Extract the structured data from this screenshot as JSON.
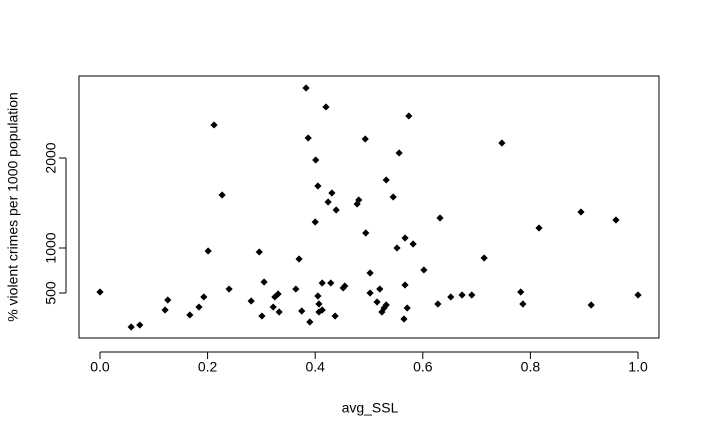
{
  "chart_data": {
    "type": "scatter",
    "x_label": "avg_SSL",
    "y_label": "% violent crimes per 1000 population",
    "color": "#000000",
    "xlim": [
      -0.039,
      1.039
    ],
    "ylim": [
      0,
      2911
    ],
    "xticks": [
      {
        "value": 0,
        "label": "0.0"
      },
      0.2,
      0.4,
      0.6,
      0.8,
      {
        "value": 1,
        "label": "1.0"
      }
    ],
    "yticks": [
      500,
      1000,
      2000
    ],
    "x": [
      0,
      0.058,
      0.074,
      0.121,
      0.126,
      0.167,
      0.184,
      0.193,
      0.201,
      0.212,
      0.227,
      0.24,
      0.281,
      0.296,
      0.301,
      0.305,
      0.322,
      0.325,
      0.331,
      0.333,
      0.364,
      0.37,
      0.375,
      0.383,
      0.387,
      0.39,
      0.401,
      0.405,
      0.405,
      0.4,
      0.407,
      0.407,
      0.413,
      0.413,
      0.42,
      0.424,
      0.429,
      0.431,
      0.437,
      0.439,
      0.452,
      0.455,
      0.478,
      0.481,
      0.493,
      0.494,
      0.502,
      0.502,
      0.515,
      0.52,
      0.524,
      0.528,
      0.532,
      0.532,
      0.545,
      0.552,
      0.556,
      0.565,
      0.567,
      0.567,
      0.571,
      0.574,
      0.582,
      0.602,
      0.628,
      0.632,
      0.652,
      0.673,
      0.691,
      0.714,
      0.747,
      0.782,
      0.786,
      0.816,
      0.894,
      0.913,
      0.959,
      1
    ],
    "values": [
      511,
      122,
      144,
      311,
      422,
      256,
      344,
      456,
      967,
      2367,
      1589,
      544,
      411,
      956,
      244,
      622,
      344,
      456,
      489,
      289,
      544,
      878,
      300,
      2778,
      2222,
      178,
      1978,
      467,
      1689,
      1289,
      378,
      289,
      611,
      311,
      2567,
      1511,
      611,
      1611,
      244,
      1422,
      556,
      578,
      1489,
      1533,
      2211,
      1167,
      722,
      500,
      400,
      544,
      289,
      333,
      1756,
      367,
      1567,
      1000,
      2056,
      211,
      589,
      1111,
      333,
      2467,
      1044,
      756,
      378,
      1333,
      456,
      478,
      478,
      889,
      2167,
      511,
      378,
      1222,
      1400,
      367,
      1311,
      478
    ]
  }
}
